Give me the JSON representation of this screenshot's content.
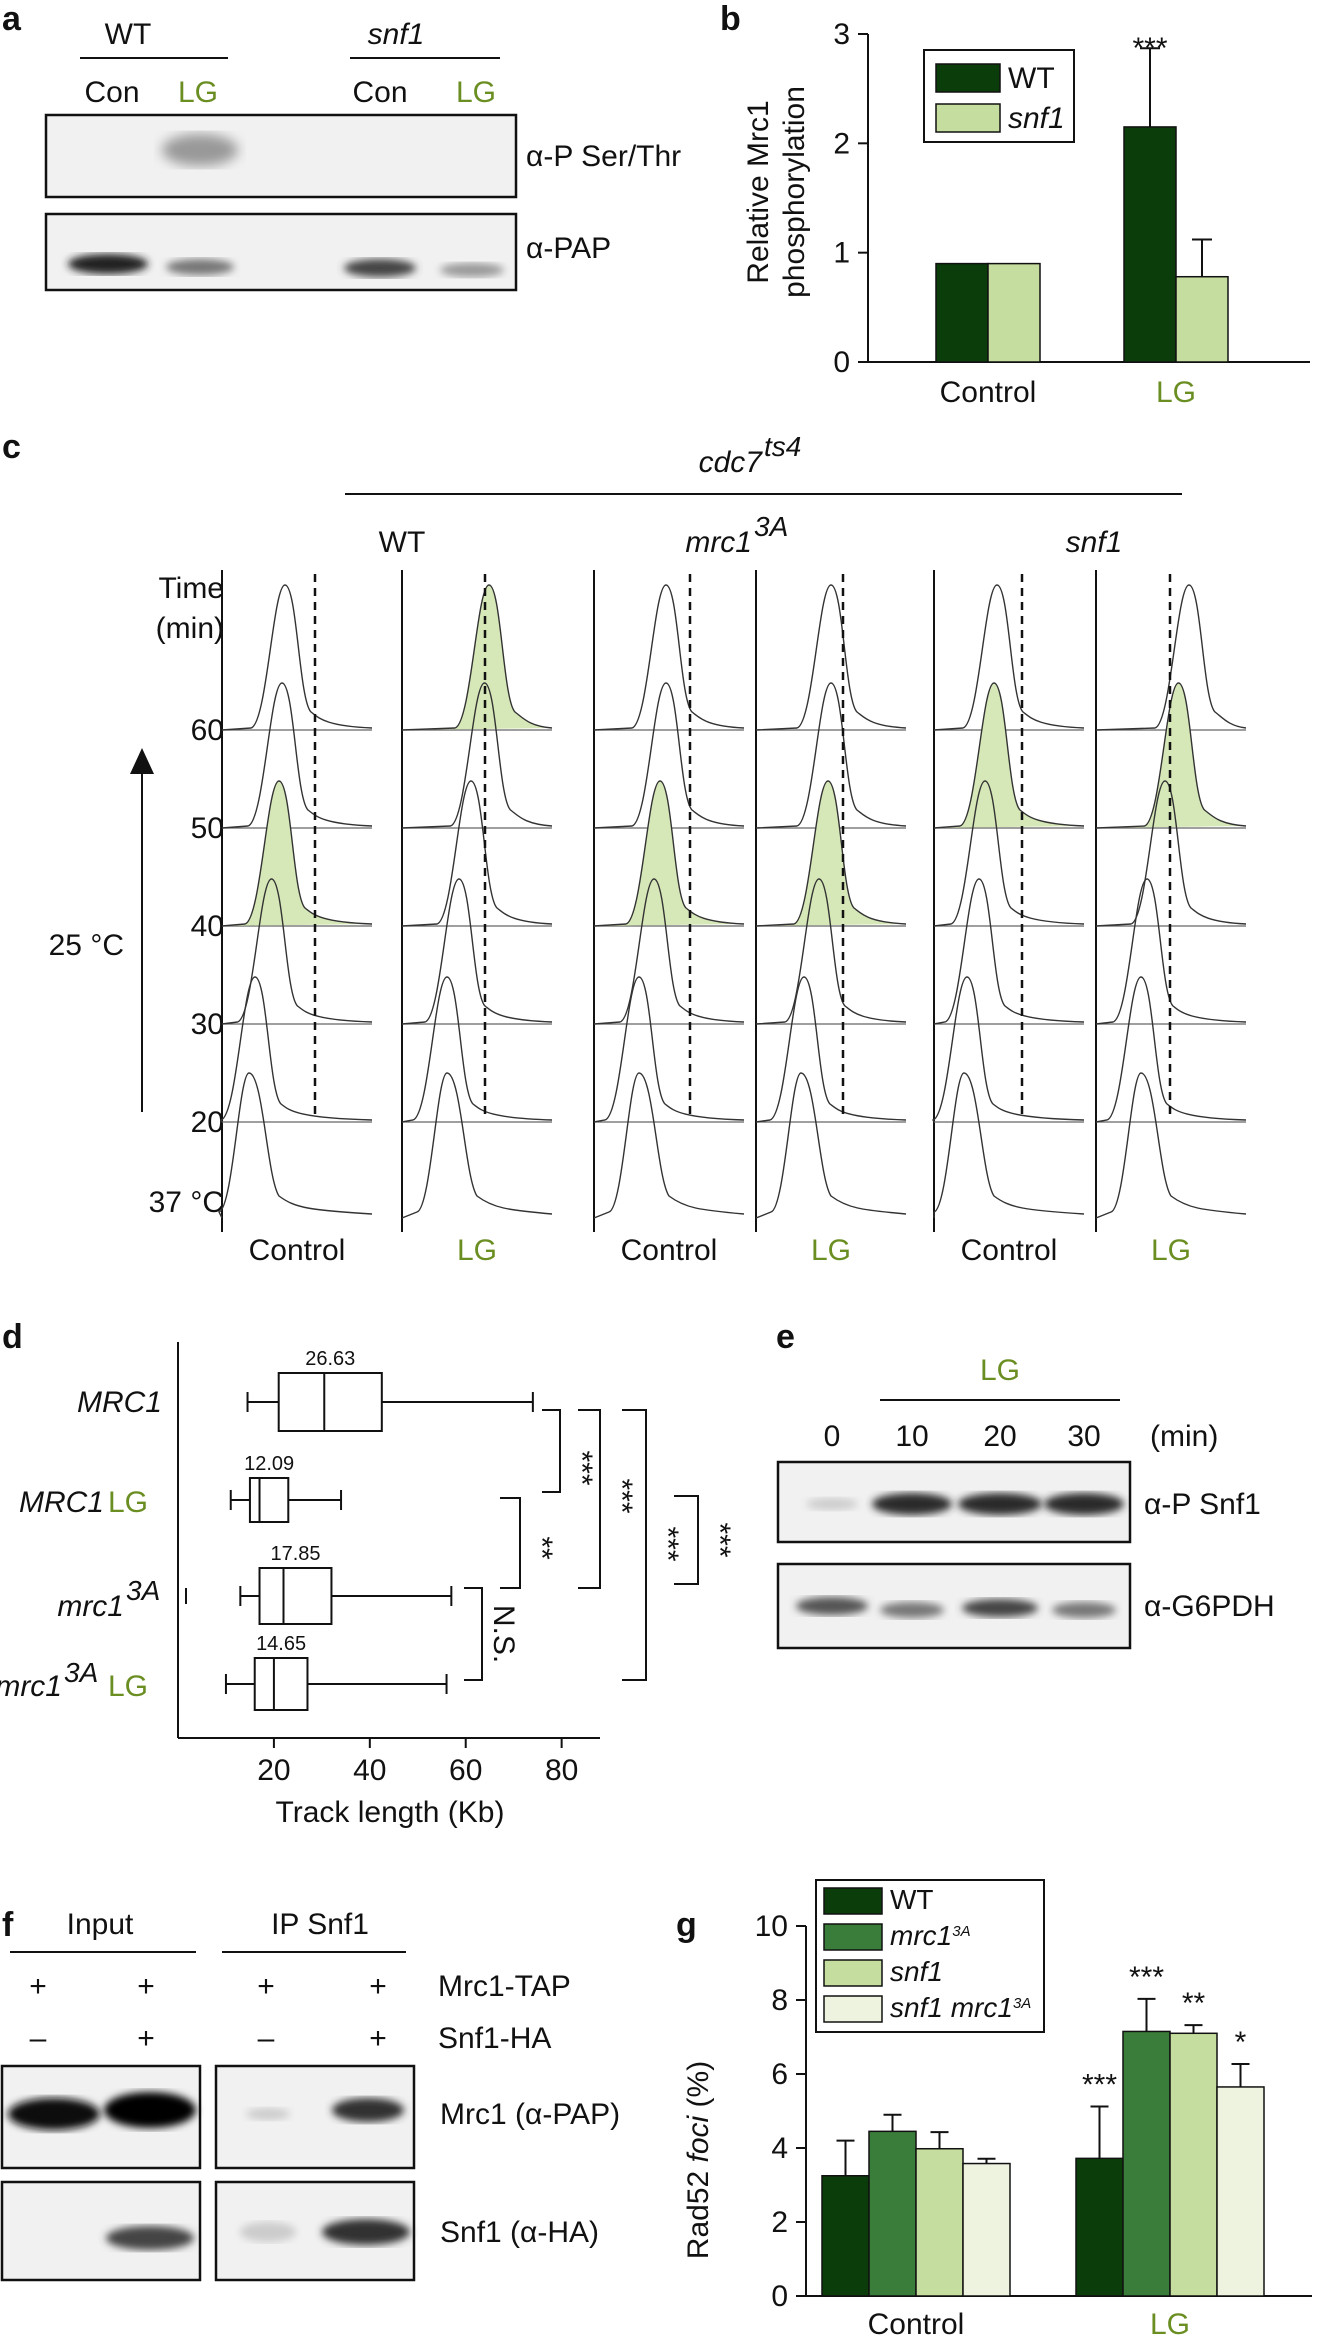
{
  "panel_a": {
    "letter": "a",
    "groups": [
      "WT",
      "snf1"
    ],
    "lanes": [
      "Con",
      "LG",
      "Con",
      "LG"
    ],
    "rows": [
      "α-P Ser/Thr",
      "α-PAP"
    ]
  },
  "panel_b": {
    "letter": "b",
    "ylabel_line1": "Relative Mrc1",
    "ylabel_line2": "phosphorylation",
    "significance": [
      "***"
    ],
    "colors": {
      "wt": "#0b3d0b",
      "snf1": "#c5dea0"
    }
  },
  "panel_c": {
    "letter": "c",
    "strain_header": "cdc7",
    "strain_header_sup": "ts4",
    "genotypes": [
      "WT",
      "mrc1",
      "snf1"
    ],
    "genotype_sup": "3A",
    "time_label_line1": "Time",
    "time_label_line2": "(min)",
    "times": [
      "60",
      "50",
      "40",
      "30",
      "20"
    ],
    "temp_start": "37 °C",
    "temp_shift": "25 °C",
    "conditions": [
      "Control",
      "LG",
      "Control",
      "LG",
      "Control",
      "LG"
    ]
  },
  "panel_d": {
    "letter": "d",
    "rows": [
      {
        "name": "MRC1",
        "suffix": ""
      },
      {
        "name": "MRC1",
        "suffix": " LG"
      },
      {
        "name": "mrc1",
        "sup": "3A",
        "suffix": ""
      },
      {
        "name": "mrc1",
        "sup": "3A",
        "suffix": " LG"
      }
    ],
    "significance": [
      "***",
      "**",
      "***",
      "***",
      "***",
      "N.S."
    ]
  },
  "panel_e": {
    "letter": "e",
    "lg_label": "LG",
    "times": [
      "0",
      "10",
      "20",
      "30"
    ],
    "unit": "(min)",
    "rows": [
      "α-P Snf1",
      "α-G6PDH"
    ]
  },
  "panel_f": {
    "letter": "f",
    "groups": [
      "Input",
      "IP Snf1"
    ],
    "row_labels": [
      "Mrc1-TAP",
      "Snf1-HA"
    ],
    "signs_row1": [
      "+",
      "+",
      "+",
      "+"
    ],
    "signs_row2": [
      "–",
      "+",
      "–",
      "+"
    ],
    "blot_labels": [
      "Mrc1 (α-PAP)",
      "Snf1 (α-HA)"
    ]
  },
  "panel_g": {
    "letter": "g",
    "ylabel_pre": "Rad52 ",
    "ylabel_ital": "foci",
    "ylabel_post": " (%)",
    "colors": [
      "#0b3d0b",
      "#3a7d3a",
      "#c5dea0",
      "#eef3df"
    ]
  },
  "chart_data": [
    {
      "type": "bar",
      "panel": "b",
      "title": "",
      "xlabel": "",
      "ylabel": "Relative Mrc1 phosphorylation",
      "categories": [
        "Control",
        "LG"
      ],
      "series": [
        {
          "name": "WT",
          "values": [
            0.9,
            2.15
          ],
          "errors": [
            0,
            0.72
          ]
        },
        {
          "name": "snf1",
          "values": [
            0.9,
            0.78
          ],
          "errors": [
            0,
            0.34
          ]
        }
      ],
      "ylim": [
        0,
        3
      ],
      "yticks": [
        "0",
        "1",
        "2",
        "3"
      ],
      "legend": "top-left"
    },
    {
      "type": "box",
      "panel": "d",
      "xlabel": "Track length (Kb)",
      "categories": [
        "MRC1",
        "MRC1 LG",
        "mrc1 3A",
        "mrc1 3A LG"
      ],
      "xlim": [
        0,
        88
      ],
      "xticks": [
        "20",
        "40",
        "60",
        "80"
      ],
      "boxes": [
        {
          "whisker_low": 14.5,
          "q1": 21,
          "median": 30.5,
          "q3": 42.5,
          "whisker_high": 74,
          "label": "26.63"
        },
        {
          "whisker_low": 11,
          "q1": 15,
          "median": 17,
          "q3": 23,
          "whisker_high": 34,
          "label": "12.09"
        },
        {
          "whisker_low": 13,
          "q1": 17,
          "median": 22,
          "q3": 32,
          "whisker_high": 57,
          "label": "17.85"
        },
        {
          "whisker_low": 10,
          "q1": 16,
          "median": 20,
          "q3": 27,
          "whisker_high": 56,
          "label": "14.65"
        }
      ]
    },
    {
      "type": "bar",
      "panel": "g",
      "title": "",
      "ylabel": "Rad52 foci (%)",
      "categories": [
        "Control",
        "LG"
      ],
      "series": [
        {
          "name": "WT",
          "values": [
            3.25,
            3.72
          ],
          "errors": [
            0.95,
            1.4
          ],
          "sig": [
            "",
            "***"
          ]
        },
        {
          "name": "mrc1 3A",
          "values": [
            4.45,
            7.15
          ],
          "errors": [
            0.45,
            0.88
          ],
          "sig": [
            "",
            "***"
          ]
        },
        {
          "name": "snf1",
          "values": [
            3.98,
            7.1
          ],
          "errors": [
            0.45,
            0.22
          ],
          "sig": [
            "",
            "**"
          ]
        },
        {
          "name": "snf1 mrc1 3A",
          "values": [
            3.58,
            5.65
          ],
          "errors": [
            0.13,
            0.62
          ],
          "sig": [
            "",
            "*"
          ]
        }
      ],
      "ylim": [
        0,
        10
      ],
      "yticks": [
        "0",
        "2",
        "4",
        "6",
        "8",
        "10"
      ],
      "legend": "top-left"
    }
  ]
}
